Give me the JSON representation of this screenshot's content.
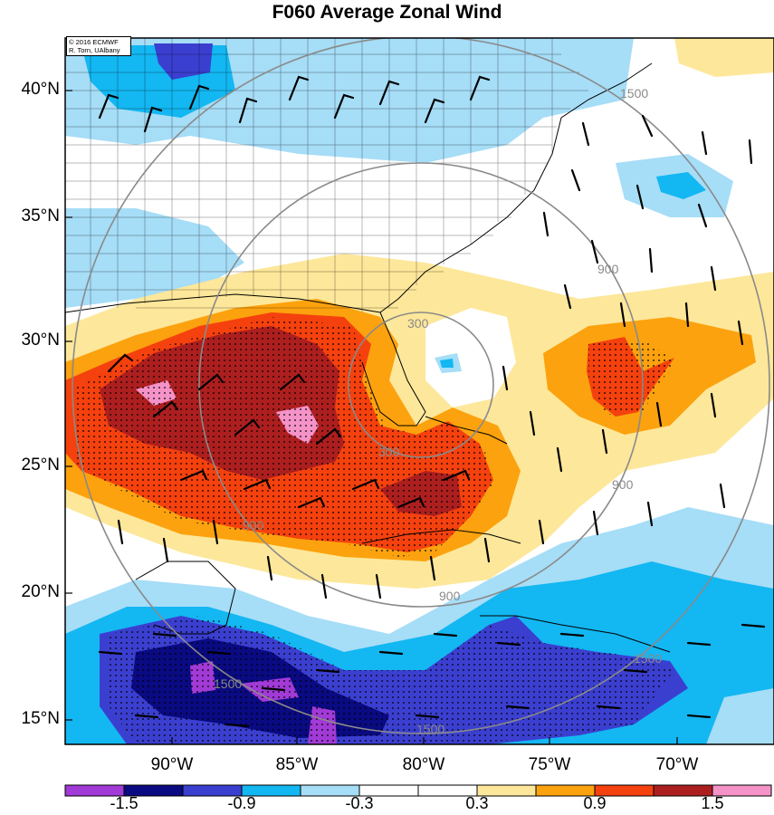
{
  "title": "F060 Average Zonal Wind",
  "credit": {
    "line1": "© 2016 ECMWF",
    "line2": "R. Torn, UAlbany"
  },
  "lat_labels": [
    "40°N",
    "35°N",
    "30°N",
    "25°N",
    "20°N",
    "15°N"
  ],
  "lon_labels": [
    "90°W",
    "85°W",
    "80°W",
    "75°W",
    "70°W"
  ],
  "colorbar": {
    "labels": [
      "-1.5",
      "-0.9",
      "-0.3",
      "0.3",
      "0.9",
      "1.5"
    ],
    "colors": [
      "#a13ad6",
      "#0a0a82",
      "#3b3fd0",
      "#13b7f2",
      "#a6ddf7",
      "#ffffff",
      "#ffffff",
      "#fde79a",
      "#fca20e",
      "#f5410e",
      "#ad1f1f",
      "#f593c8"
    ]
  },
  "range_rings": {
    "labels": [
      "300",
      "900",
      "1500"
    ],
    "color": "#8a8a8a"
  },
  "palette": {
    "dark_purple": "#a13ad6",
    "navy": "#0a0a82",
    "blue": "#3b3fd0",
    "cyan": "#13b7f2",
    "light_blue": "#a6ddf7",
    "light_yellow": "#fde79a",
    "orange": "#fca20e",
    "red_orange": "#f5410e",
    "dark_red": "#ad1f1f",
    "pink": "#f593c8"
  }
}
